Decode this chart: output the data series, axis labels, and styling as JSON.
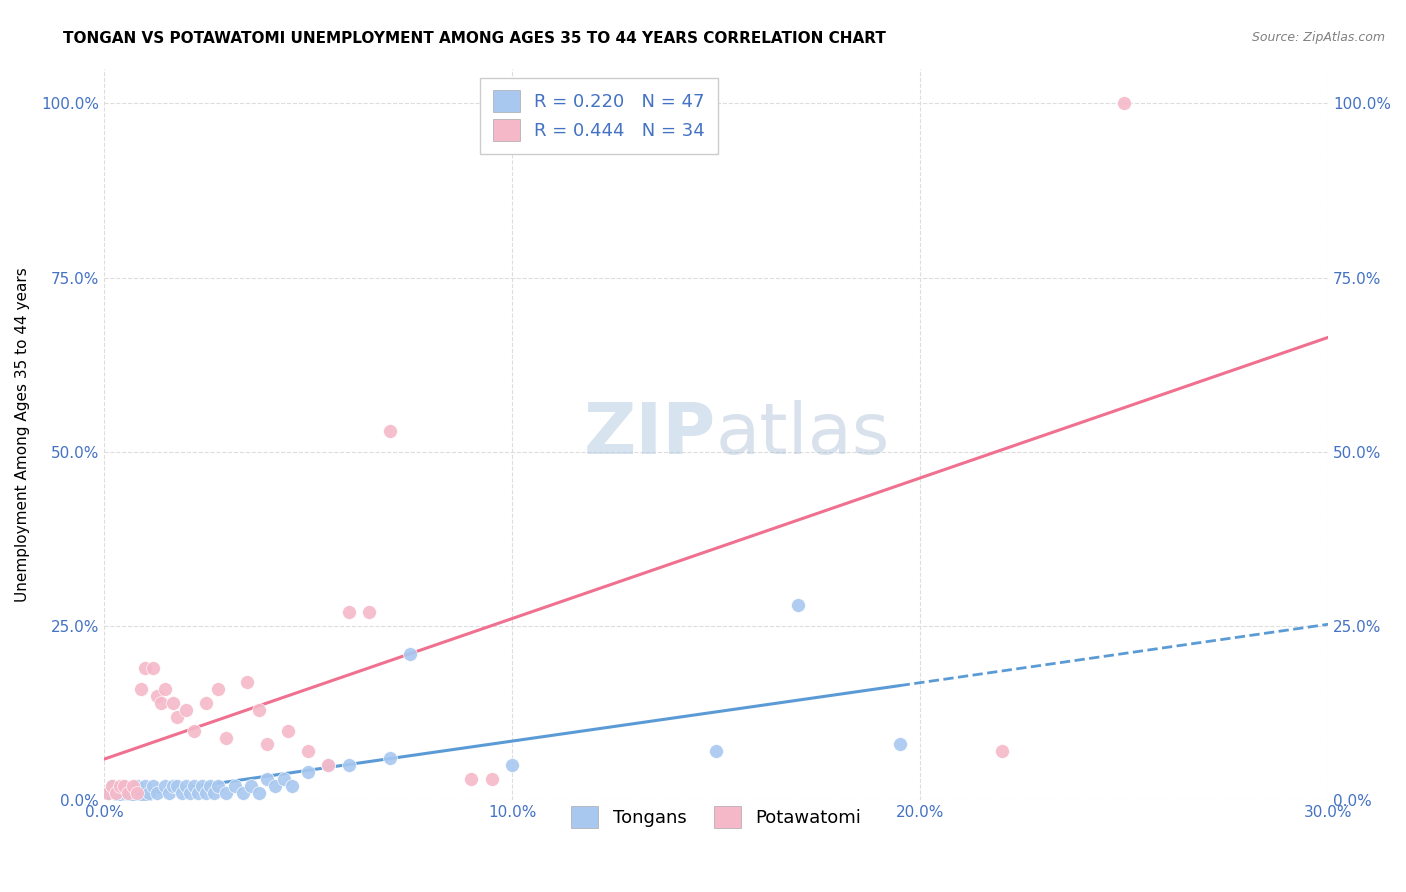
{
  "title": "TONGAN VS POTAWATOMI UNEMPLOYMENT AMONG AGES 35 TO 44 YEARS CORRELATION CHART",
  "source": "Source: ZipAtlas.com",
  "ylabel": "Unemployment Among Ages 35 to 44 years",
  "xlim": [
    0.0,
    0.3
  ],
  "ylim": [
    0.0,
    1.05
  ],
  "ytick_labels": [
    "0.0%",
    "25.0%",
    "50.0%",
    "75.0%",
    "100.0%"
  ],
  "ytick_values": [
    0.0,
    0.25,
    0.5,
    0.75,
    1.0
  ],
  "xtick_labels": [
    "0.0%",
    "10.0%",
    "20.0%",
    "30.0%"
  ],
  "xtick_values": [
    0.0,
    0.1,
    0.2,
    0.3
  ],
  "tongan_color": "#A8C8F0",
  "potawatomi_color": "#F5B8C8",
  "tongan_line_color": "#5B9BD5",
  "potawatomi_line_color": "#F07090",
  "background_color": "#FFFFFF",
  "grid_color": "#DDDDDD",
  "watermark_color": "#D0E4F0",
  "legend_text_color": "#4472C4",
  "tick_color": "#4472C4",
  "title_color": "#000000",
  "tongan_x": [
    0.001,
    0.002,
    0.003,
    0.004,
    0.005,
    0.005,
    0.006,
    0.007,
    0.008,
    0.009,
    0.01,
    0.01,
    0.011,
    0.012,
    0.013,
    0.015,
    0.016,
    0.017,
    0.018,
    0.019,
    0.02,
    0.021,
    0.022,
    0.023,
    0.024,
    0.025,
    0.026,
    0.027,
    0.028,
    0.03,
    0.032,
    0.034,
    0.036,
    0.038,
    0.04,
    0.042,
    0.044,
    0.046,
    0.05,
    0.055,
    0.06,
    0.07,
    0.075,
    0.1,
    0.15,
    0.17,
    0.195
  ],
  "tongan_y": [
    0.01,
    0.02,
    0.01,
    0.0,
    0.01,
    0.02,
    0.01,
    0.0,
    0.02,
    0.01,
    0.02,
    0.0,
    0.01,
    0.02,
    0.01,
    0.02,
    0.01,
    0.02,
    0.02,
    0.01,
    0.02,
    0.01,
    0.02,
    0.01,
    0.02,
    0.01,
    0.02,
    0.01,
    0.02,
    0.01,
    0.02,
    0.01,
    0.02,
    0.01,
    0.03,
    0.02,
    0.03,
    0.02,
    0.04,
    0.05,
    0.05,
    0.06,
    0.21,
    0.05,
    0.07,
    0.28,
    0.08
  ],
  "potawatomi_x": [
    0.001,
    0.002,
    0.003,
    0.004,
    0.005,
    0.006,
    0.007,
    0.008,
    0.009,
    0.01,
    0.012,
    0.013,
    0.014,
    0.015,
    0.017,
    0.018,
    0.02,
    0.022,
    0.025,
    0.028,
    0.03,
    0.035,
    0.038,
    0.04,
    0.045,
    0.05,
    0.055,
    0.06,
    0.065,
    0.07,
    0.09,
    0.095,
    0.22,
    0.25
  ],
  "potawatomi_y": [
    0.01,
    0.02,
    0.01,
    0.02,
    0.02,
    0.01,
    0.02,
    0.01,
    0.16,
    0.19,
    0.19,
    0.15,
    0.14,
    0.16,
    0.14,
    0.12,
    0.13,
    0.1,
    0.14,
    0.16,
    0.09,
    0.17,
    0.13,
    0.08,
    0.1,
    0.07,
    0.05,
    0.27,
    0.27,
    0.53,
    0.03,
    0.03,
    0.07,
    1.0
  ],
  "title_fontsize": 11,
  "axis_label_fontsize": 11,
  "tick_fontsize": 11,
  "legend_fontsize": 13,
  "watermark_fontsize": 52,
  "source_fontsize": 9
}
